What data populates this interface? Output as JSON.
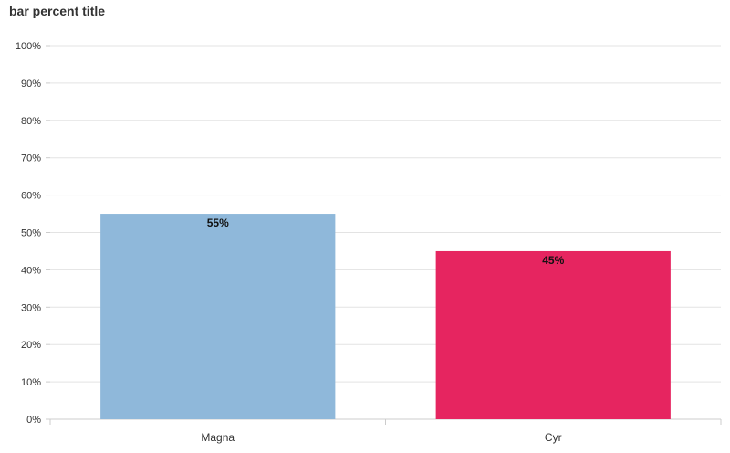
{
  "chart_data": {
    "type": "bar",
    "title": "bar percent title",
    "categories": [
      "Magna",
      "Cyr"
    ],
    "values": [
      55,
      45
    ],
    "data_labels": [
      "55%",
      "45%"
    ],
    "colors": [
      "#8fb8da",
      "#e62560"
    ],
    "ylim": [
      0,
      100
    ],
    "yticks": [
      0,
      10,
      20,
      30,
      40,
      50,
      60,
      70,
      80,
      90,
      100
    ],
    "ytick_labels": [
      "0%",
      "10%",
      "20%",
      "30%",
      "40%",
      "50%",
      "60%",
      "70%",
      "80%",
      "90%",
      "100%"
    ],
    "xlabel": "",
    "ylabel": "",
    "grid": true,
    "legend": "none"
  }
}
